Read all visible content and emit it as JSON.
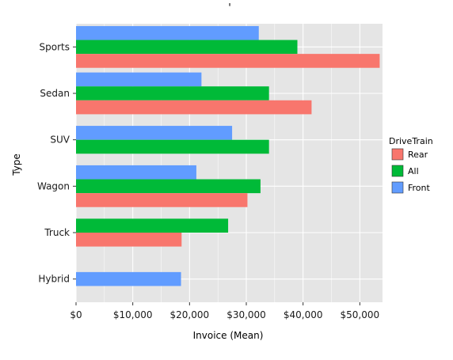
{
  "chart_data": {
    "type": "bar",
    "orientation": "horizontal",
    "title": "'",
    "xlabel": "Invoice (Mean)",
    "ylabel": "Type",
    "xlim": [
      0,
      54000
    ],
    "x_ticks": [
      0,
      10000,
      20000,
      30000,
      40000,
      50000
    ],
    "x_tick_labels": [
      "$0",
      "$10,000",
      "$20,000",
      "$30,000",
      "$40,000",
      "$50,000"
    ],
    "categories": [
      "Sports",
      "Sedan",
      "SUV",
      "Wagon",
      "Truck",
      "Hybrid"
    ],
    "grid": true,
    "legend_position": "right",
    "legend_title": "DriveTrain",
    "series": [
      {
        "name": "Rear",
        "color": "#F8766D",
        "values": [
          53500,
          41500,
          null,
          30200,
          18600,
          null
        ]
      },
      {
        "name": "All",
        "color": "#00BA38",
        "values": [
          39000,
          34000,
          34000,
          32500,
          26800,
          null
        ]
      },
      {
        "name": "Front",
        "color": "#619CFF",
        "values": [
          32200,
          22100,
          27500,
          21200,
          null,
          18500
        ]
      }
    ],
    "bar_stack_order": [
      "Front",
      "All",
      "Rear"
    ]
  },
  "colors": {
    "panel_background": "#E5E5E5",
    "grid": "#FFFFFF"
  }
}
